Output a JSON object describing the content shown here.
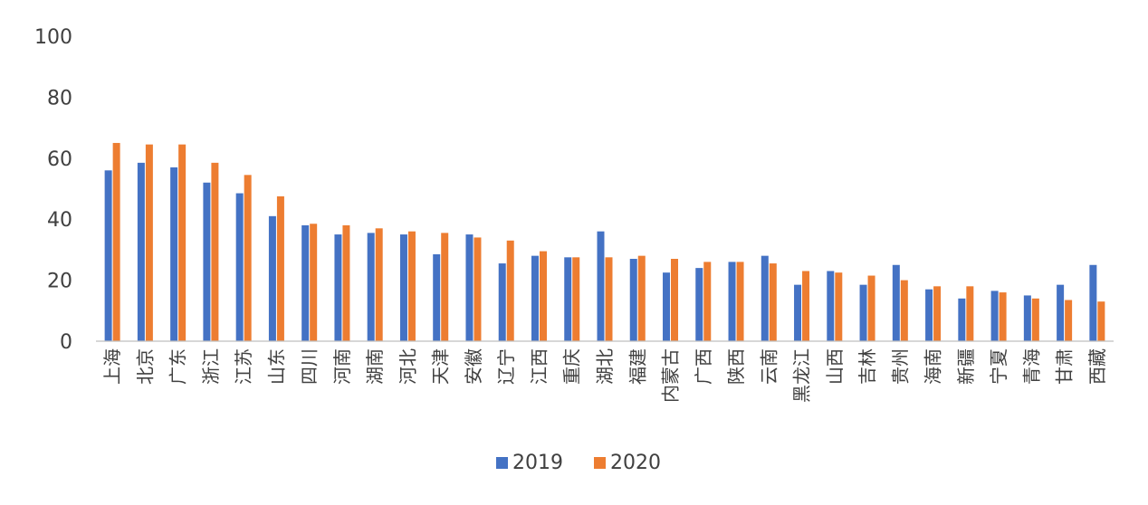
{
  "chart_data": {
    "type": "bar",
    "title": "",
    "xlabel": "",
    "ylabel": "",
    "ylim": [
      0,
      100
    ],
    "yticks": [
      0,
      20,
      40,
      60,
      80,
      100
    ],
    "grid": false,
    "legend_position": "bottom",
    "categories": [
      "上海",
      "北京",
      "广东",
      "浙江",
      "江苏",
      "山东",
      "四川",
      "河南",
      "湖南",
      "河北",
      "天津",
      "安徽",
      "辽宁",
      "江西",
      "重庆",
      "湖北",
      "福建",
      "内蒙古",
      "广西",
      "陕西",
      "云南",
      "黑龙江",
      "山西",
      "吉林",
      "贵州",
      "海南",
      "新疆",
      "宁夏",
      "青海",
      "甘肃",
      "西藏"
    ],
    "series": [
      {
        "name": "2019",
        "color": "#4472C4",
        "values": [
          56,
          58.5,
          57,
          52,
          48.5,
          41,
          38,
          35,
          35.5,
          35,
          28.5,
          35,
          25.5,
          28,
          27.5,
          36,
          27,
          22.5,
          24,
          26,
          28,
          18.5,
          23,
          18.5,
          25,
          17,
          14,
          16.5,
          15,
          18.5,
          25
        ]
      },
      {
        "name": "2020",
        "color": "#ED7D31",
        "values": [
          65,
          64.5,
          64.5,
          58.5,
          54.5,
          47.5,
          38.5,
          38,
          37,
          36,
          35.5,
          34,
          33,
          29.5,
          27.5,
          27.5,
          28,
          27,
          26,
          26,
          25.5,
          23,
          22.5,
          21.5,
          20,
          18,
          18,
          16,
          14,
          13.5,
          13
        ]
      }
    ]
  }
}
